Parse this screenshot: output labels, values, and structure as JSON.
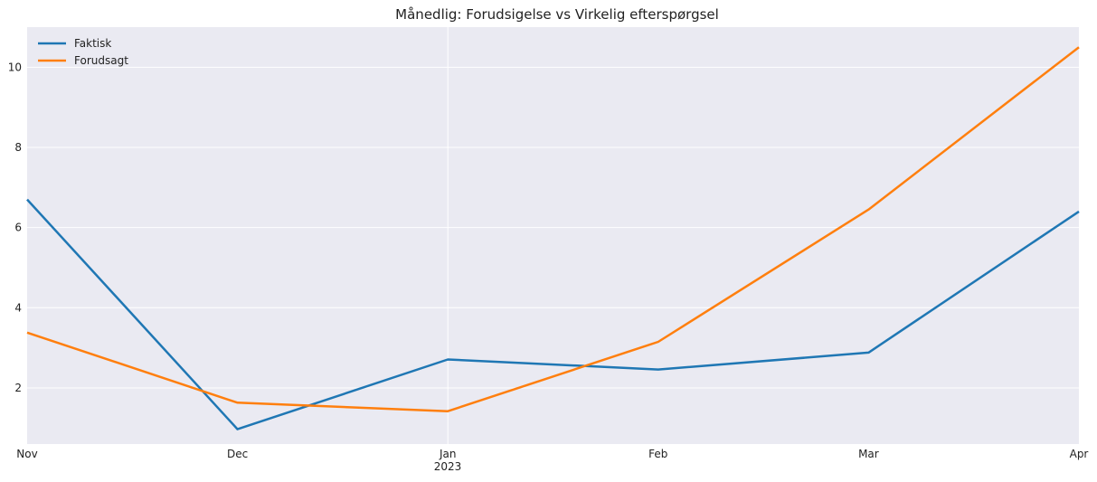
{
  "chart_data": {
    "type": "line",
    "title": "Månedlig: Forudsigelse vs Virkelig efterspørgsel",
    "xlabel": "",
    "ylabel": "",
    "x": [
      "2022-11",
      "2022-12",
      "2023-01",
      "2023-02",
      "2023-03",
      "2023-04"
    ],
    "x_tick_labels": [
      "Nov",
      "Dec",
      "Jan",
      "Feb",
      "Mar",
      "Apr"
    ],
    "x_year_label": "2023",
    "y_ticks": [
      2,
      4,
      6,
      8,
      10
    ],
    "ylim": [
      0.6,
      11.0
    ],
    "grid": true,
    "legend_position": "top-left",
    "series": [
      {
        "name": "Faktisk",
        "color": "#1f77b4",
        "values": [
          6.7,
          0.97,
          2.71,
          2.46,
          2.88,
          6.4
        ]
      },
      {
        "name": "Forudsagt",
        "color": "#ff7f0e",
        "values": [
          3.38,
          1.63,
          1.42,
          3.15,
          6.45,
          10.5
        ]
      }
    ]
  }
}
